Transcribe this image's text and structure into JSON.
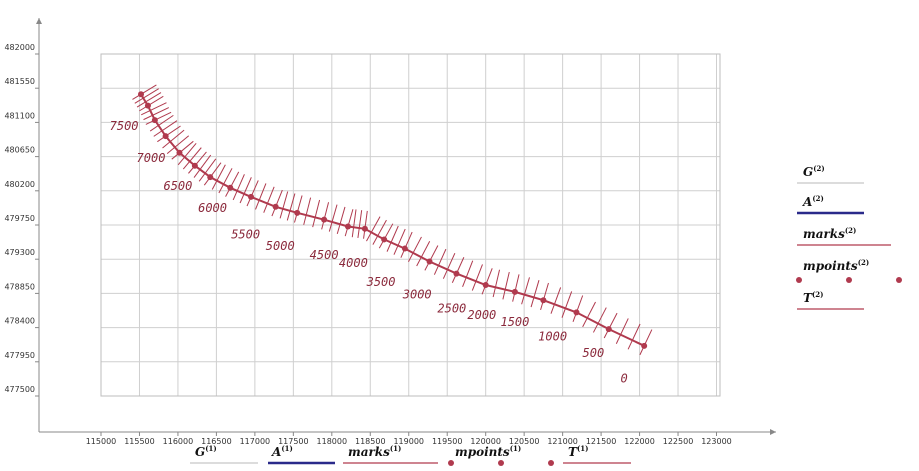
{
  "chart_data": {
    "type": "line",
    "xlim": [
      115000,
      123000
    ],
    "ylim": [
      477500,
      482000
    ],
    "x_ticks": [
      115000,
      115500,
      116000,
      116500,
      117000,
      117500,
      118000,
      118500,
      119000,
      119500,
      120000,
      120500,
      121000,
      121500,
      122000,
      122500,
      123000
    ],
    "y_ticks": [
      477500,
      477950,
      478400,
      478850,
      479300,
      479750,
      480200,
      480650,
      481100,
      481550,
      482000
    ],
    "x_tick_labels": [
      "115000",
      "115500",
      "116000",
      "116500",
      "117000",
      "117500",
      "118000",
      "118500",
      "119000",
      "119500",
      "120000",
      "120500",
      "121000",
      "121500",
      "122000",
      "122500",
      "123000"
    ],
    "y_tick_labels": [
      "477500",
      "477950",
      "478400",
      "478850",
      "479300",
      "479750",
      "480200",
      "480650",
      "481100",
      "481550",
      "482000"
    ],
    "grid": true,
    "series": [
      {
        "name": "mpoints",
        "color": "#b03a4e",
        "x": [
          122060,
          121600,
          121180,
          120750,
          120380,
          120000,
          119620,
          119270,
          118950,
          118680,
          118430,
          118210,
          117900,
          117550,
          117270,
          116950,
          116680,
          116420,
          116220,
          116020,
          115840,
          115700,
          115610,
          115520
        ],
        "y": [
          478160,
          478380,
          478600,
          478760,
          478870,
          478960,
          479110,
          479270,
          479440,
          479560,
          479700,
          479730,
          479820,
          479910,
          479990,
          480120,
          480240,
          480380,
          480530,
          480700,
          480920,
          481130,
          481320,
          481470
        ]
      }
    ],
    "chainage_marks": [
      {
        "label": "0",
        "x": 121800,
        "y": 477680
      },
      {
        "label": "500",
        "x": 121400,
        "y": 478010
      },
      {
        "label": "1000",
        "x": 120870,
        "y": 478230
      },
      {
        "label": "1500",
        "x": 120380,
        "y": 478420
      },
      {
        "label": "2000",
        "x": 119950,
        "y": 478510
      },
      {
        "label": "2500",
        "x": 119560,
        "y": 478600
      },
      {
        "label": "3000",
        "x": 119110,
        "y": 478780
      },
      {
        "label": "3500",
        "x": 118640,
        "y": 478950
      },
      {
        "label": "4000",
        "x": 118280,
        "y": 479200
      },
      {
        "label": "4500",
        "x": 117900,
        "y": 479300
      },
      {
        "label": "5000",
        "x": 117330,
        "y": 479420
      },
      {
        "label": "5500",
        "x": 116880,
        "y": 479570
      },
      {
        "label": "6000",
        "x": 116450,
        "y": 479920
      },
      {
        "label": "6500",
        "x": 116000,
        "y": 480210
      },
      {
        "label": "7000",
        "x": 115650,
        "y": 480580
      },
      {
        "label": "7500",
        "x": 115300,
        "y": 481000
      }
    ]
  },
  "legend_right": [
    {
      "symbol": "G",
      "sup": "(2)",
      "color": "#c8c8c8",
      "style": "line"
    },
    {
      "symbol": "A",
      "sup": "(2)",
      "color": "#2a2a8a",
      "style": "thick"
    },
    {
      "symbol": "marks",
      "sup": "(2)",
      "color": "#b03a4e",
      "style": "line"
    },
    {
      "symbol": "mpoints",
      "sup": "(2)",
      "color": "#b03a4e",
      "style": "dots"
    },
    {
      "symbol": "T",
      "sup": "(2)",
      "color": "#b03a4e",
      "style": "line"
    }
  ],
  "legend_bottom": [
    {
      "symbol": "G",
      "sup": "(1)",
      "color": "#c8c8c8",
      "style": "line"
    },
    {
      "symbol": "A",
      "sup": "(1)",
      "color": "#2a2a8a",
      "style": "thick"
    },
    {
      "symbol": "marks",
      "sup": "(1)",
      "color": "#b03a4e",
      "style": "line"
    },
    {
      "symbol": "mpoints",
      "sup": "(1)",
      "color": "#b03a4e",
      "style": "dots"
    },
    {
      "symbol": "T",
      "sup": "(1)",
      "color": "#b03a4e",
      "style": "line"
    }
  ]
}
